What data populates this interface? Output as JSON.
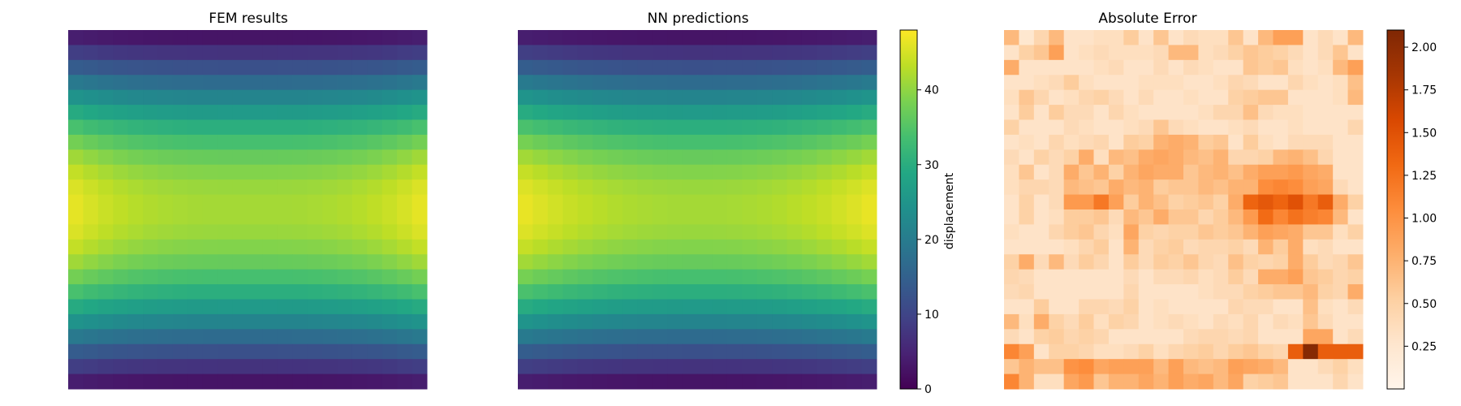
{
  "chart_data": [
    {
      "type": "heatmap",
      "title": "FEM results",
      "rows": 24,
      "cols": 24,
      "colormap": "viridis",
      "vmin": 0,
      "vmax": 48,
      "axes": "off",
      "profile": {
        "edge_center": 47,
        "middle_center": 41.5,
        "edge_end": 2.3,
        "middle_end": 1.0
      }
    },
    {
      "type": "heatmap",
      "title": "NN predictions",
      "rows": 24,
      "cols": 24,
      "colormap": "viridis",
      "vmin": 0,
      "vmax": 48,
      "axes": "off",
      "profile": {
        "edge_center": 47,
        "middle_center": 41.5,
        "edge_end": 2.3,
        "middle_end": 1.0
      },
      "colorbar": {
        "label": "displacement",
        "ticks": [
          0,
          10,
          20,
          30,
          40
        ],
        "tick_labels": [
          "0",
          "10",
          "20",
          "30",
          "40"
        ]
      }
    },
    {
      "type": "heatmap",
      "title": "Absolute Error",
      "rows": 24,
      "cols": 24,
      "colormap": "oranges",
      "vmin": 0,
      "vmax": 2.1,
      "axes": "off",
      "values": [
        [
          0.7,
          0.25,
          0.45,
          0.7,
          0.3,
          0.3,
          0.35,
          0.35,
          0.55,
          0.3,
          0.6,
          0.3,
          0.4,
          0.35,
          0.35,
          0.6,
          0.3,
          0.7,
          0.9,
          0.9,
          0.3,
          0.4,
          0.3,
          0.7
        ],
        [
          0.3,
          0.5,
          0.6,
          0.9,
          0.3,
          0.35,
          0.4,
          0.35,
          0.35,
          0.35,
          0.4,
          0.7,
          0.7,
          0.35,
          0.4,
          0.5,
          0.6,
          0.55,
          0.5,
          0.4,
          0.3,
          0.4,
          0.6,
          0.3
        ],
        [
          0.8,
          0.3,
          0.3,
          0.3,
          0.3,
          0.3,
          0.35,
          0.4,
          0.3,
          0.3,
          0.4,
          0.3,
          0.4,
          0.35,
          0.3,
          0.3,
          0.6,
          0.55,
          0.6,
          0.35,
          0.3,
          0.35,
          0.7,
          0.9
        ],
        [
          0.3,
          0.3,
          0.35,
          0.4,
          0.55,
          0.35,
          0.3,
          0.3,
          0.3,
          0.35,
          0.35,
          0.35,
          0.3,
          0.3,
          0.35,
          0.45,
          0.4,
          0.3,
          0.3,
          0.45,
          0.35,
          0.3,
          0.35,
          0.65
        ],
        [
          0.35,
          0.6,
          0.45,
          0.3,
          0.35,
          0.45,
          0.5,
          0.4,
          0.3,
          0.4,
          0.3,
          0.3,
          0.35,
          0.3,
          0.3,
          0.5,
          0.55,
          0.6,
          0.6,
          0.3,
          0.3,
          0.3,
          0.35,
          0.7
        ],
        [
          0.3,
          0.55,
          0.3,
          0.55,
          0.4,
          0.4,
          0.3,
          0.45,
          0.35,
          0.3,
          0.3,
          0.3,
          0.3,
          0.35,
          0.45,
          0.45,
          0.65,
          0.4,
          0.35,
          0.35,
          0.3,
          0.3,
          0.3,
          0.3
        ],
        [
          0.5,
          0.3,
          0.3,
          0.3,
          0.4,
          0.35,
          0.3,
          0.3,
          0.35,
          0.4,
          0.6,
          0.4,
          0.35,
          0.3,
          0.3,
          0.35,
          0.4,
          0.3,
          0.3,
          0.35,
          0.3,
          0.3,
          0.3,
          0.45
        ],
        [
          0.3,
          0.35,
          0.3,
          0.45,
          0.35,
          0.4,
          0.45,
          0.3,
          0.55,
          0.5,
          0.75,
          0.8,
          0.75,
          0.55,
          0.6,
          0.3,
          0.55,
          0.35,
          0.3,
          0.4,
          0.4,
          0.4,
          0.3,
          0.3
        ],
        [
          0.4,
          0.3,
          0.5,
          0.4,
          0.5,
          0.8,
          0.35,
          0.7,
          0.65,
          0.8,
          0.85,
          0.8,
          0.7,
          0.65,
          0.75,
          0.45,
          0.45,
          0.5,
          0.7,
          0.75,
          0.65,
          0.45,
          0.3,
          0.3
        ],
        [
          0.35,
          0.6,
          0.3,
          0.4,
          0.8,
          0.6,
          0.75,
          0.5,
          0.75,
          0.85,
          0.8,
          0.8,
          0.6,
          0.7,
          0.75,
          0.65,
          0.8,
          0.9,
          0.9,
          0.95,
          0.85,
          0.8,
          0.3,
          0.3
        ],
        [
          0.35,
          0.45,
          0.45,
          0.4,
          0.7,
          0.65,
          0.6,
          0.8,
          0.7,
          0.75,
          0.55,
          0.6,
          0.6,
          0.7,
          0.65,
          0.75,
          0.75,
          1.05,
          1.1,
          1.05,
          0.9,
          0.85,
          0.4,
          0.3
        ],
        [
          0.3,
          0.5,
          0.3,
          0.4,
          0.95,
          0.95,
          1.2,
          0.9,
          0.55,
          0.75,
          0.65,
          0.5,
          0.55,
          0.6,
          0.5,
          0.8,
          1.35,
          1.45,
          1.35,
          1.5,
          1.2,
          1.4,
          0.8,
          0.5
        ],
        [
          0.3,
          0.5,
          0.3,
          0.35,
          0.55,
          0.55,
          0.6,
          0.4,
          0.7,
          0.6,
          0.8,
          0.6,
          0.6,
          0.45,
          0.55,
          0.7,
          0.95,
          1.3,
          1.1,
          1.25,
          1.15,
          1.1,
          0.7,
          0.3
        ],
        [
          0.35,
          0.3,
          0.3,
          0.45,
          0.55,
          0.6,
          0.45,
          0.35,
          0.85,
          0.5,
          0.45,
          0.5,
          0.5,
          0.6,
          0.55,
          0.6,
          0.75,
          0.9,
          0.85,
          0.8,
          0.6,
          0.6,
          0.35,
          0.5
        ],
        [
          0.3,
          0.3,
          0.3,
          0.3,
          0.35,
          0.45,
          0.55,
          0.3,
          0.75,
          0.4,
          0.5,
          0.55,
          0.4,
          0.45,
          0.45,
          0.5,
          0.4,
          0.75,
          0.55,
          0.8,
          0.35,
          0.4,
          0.3,
          0.3
        ],
        [
          0.5,
          0.8,
          0.4,
          0.7,
          0.4,
          0.55,
          0.45,
          0.3,
          0.55,
          0.4,
          0.55,
          0.5,
          0.6,
          0.45,
          0.4,
          0.65,
          0.5,
          0.45,
          0.5,
          0.8,
          0.55,
          0.4,
          0.45,
          0.6
        ],
        [
          0.45,
          0.4,
          0.3,
          0.3,
          0.3,
          0.3,
          0.3,
          0.3,
          0.4,
          0.3,
          0.4,
          0.4,
          0.45,
          0.35,
          0.4,
          0.55,
          0.4,
          0.8,
          0.8,
          0.9,
          0.6,
          0.55,
          0.45,
          0.5
        ],
        [
          0.4,
          0.45,
          0.3,
          0.3,
          0.3,
          0.3,
          0.3,
          0.3,
          0.45,
          0.3,
          0.3,
          0.3,
          0.3,
          0.35,
          0.4,
          0.4,
          0.5,
          0.55,
          0.6,
          0.6,
          0.7,
          0.5,
          0.45,
          0.8
        ],
        [
          0.3,
          0.3,
          0.55,
          0.3,
          0.3,
          0.45,
          0.45,
          0.4,
          0.5,
          0.3,
          0.35,
          0.3,
          0.3,
          0.3,
          0.3,
          0.45,
          0.4,
          0.4,
          0.3,
          0.3,
          0.65,
          0.35,
          0.3,
          0.4
        ],
        [
          0.7,
          0.35,
          0.8,
          0.5,
          0.4,
          0.55,
          0.35,
          0.5,
          0.45,
          0.3,
          0.35,
          0.4,
          0.35,
          0.3,
          0.4,
          0.35,
          0.45,
          0.3,
          0.4,
          0.35,
          0.6,
          0.4,
          0.3,
          0.3
        ],
        [
          0.4,
          0.3,
          0.5,
          0.55,
          0.45,
          0.5,
          0.45,
          0.3,
          0.3,
          0.3,
          0.3,
          0.3,
          0.4,
          0.45,
          0.45,
          0.4,
          0.45,
          0.3,
          0.3,
          0.3,
          0.85,
          0.85,
          0.3,
          0.4
        ],
        [
          1.1,
          0.9,
          0.3,
          0.5,
          0.5,
          0.45,
          0.35,
          0.35,
          0.4,
          0.5,
          0.35,
          0.45,
          0.5,
          0.55,
          0.45,
          0.55,
          0.6,
          0.5,
          0.45,
          1.4,
          2.05,
          1.4,
          1.4,
          1.4
        ],
        [
          0.6,
          0.75,
          0.65,
          0.65,
          1.0,
          1.05,
          0.85,
          0.9,
          0.9,
          0.9,
          0.7,
          0.9,
          0.7,
          0.65,
          0.7,
          0.9,
          0.85,
          0.8,
          0.7,
          0.3,
          0.3,
          0.4,
          0.5,
          0.35
        ],
        [
          1.1,
          0.75,
          0.35,
          0.35,
          0.85,
          0.95,
          0.6,
          0.75,
          0.75,
          0.85,
          0.75,
          0.9,
          0.8,
          0.85,
          0.7,
          0.85,
          0.5,
          0.55,
          0.6,
          0.3,
          0.3,
          0.3,
          0.45,
          0.3
        ]
      ],
      "colorbar": {
        "label": "",
        "ticks": [
          0.25,
          0.5,
          0.75,
          1.0,
          1.25,
          1.5,
          1.75,
          2.0
        ],
        "tick_labels": [
          "0.25",
          "0.50",
          "0.75",
          "1.00",
          "1.25",
          "1.50",
          "1.75",
          "2.00"
        ]
      }
    }
  ]
}
